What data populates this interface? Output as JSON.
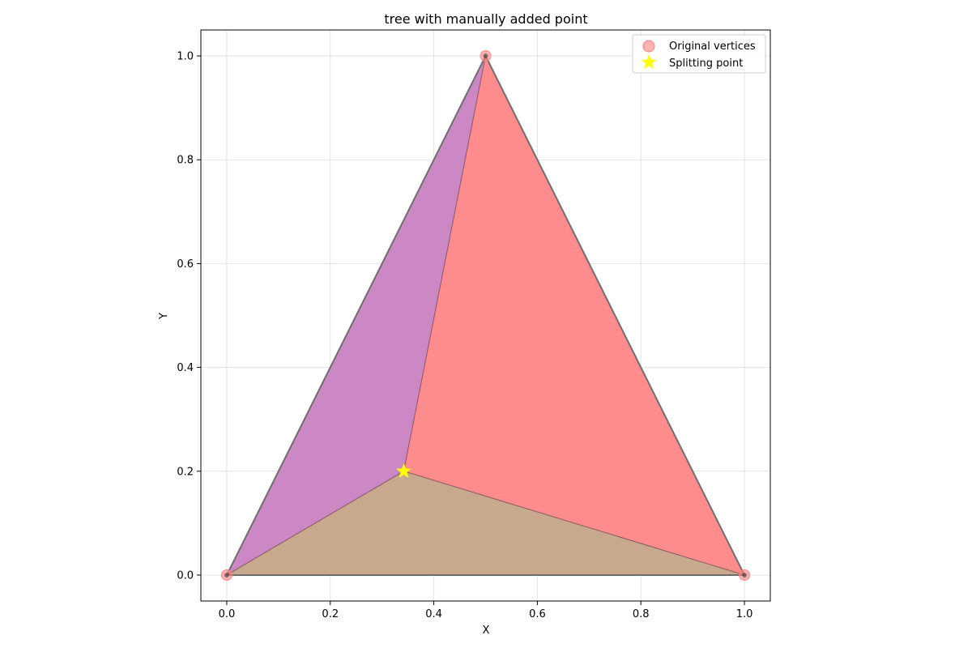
{
  "chart_data": {
    "type": "scatter",
    "title": "tree with manually added point",
    "xlabel": "X",
    "ylabel": "Y",
    "xlim": [
      -0.05,
      1.05
    ],
    "ylim": [
      -0.05,
      1.05
    ],
    "xticks": [
      0.0,
      0.2,
      0.4,
      0.6,
      0.8,
      1.0
    ],
    "yticks": [
      0.0,
      0.2,
      0.4,
      0.6,
      0.8,
      1.0
    ],
    "xtick_labels": [
      "0.0",
      "0.2",
      "0.4",
      "0.6",
      "0.8",
      "1.0"
    ],
    "ytick_labels": [
      "0.0",
      "0.2",
      "0.4",
      "0.6",
      "0.8",
      "1.0"
    ],
    "grid": true,
    "legend_position": "top-right",
    "triangles": [
      {
        "vertices": [
          [
            0.0,
            0.0
          ],
          [
            0.5,
            1.0
          ],
          [
            0.342,
            0.2
          ]
        ],
        "color": "#cc88c4"
      },
      {
        "vertices": [
          [
            0.5,
            1.0
          ],
          [
            1.0,
            0.0
          ],
          [
            0.342,
            0.2
          ]
        ],
        "color": "#ff8c8c"
      },
      {
        "vertices": [
          [
            0.0,
            0.0
          ],
          [
            1.0,
            0.0
          ],
          [
            0.342,
            0.2
          ]
        ],
        "color": "#c9a98e"
      }
    ],
    "outline": {
      "vertices": [
        [
          0.0,
          0.0
        ],
        [
          0.5,
          1.0
        ],
        [
          1.0,
          0.0
        ]
      ],
      "color": "#6e6e6e"
    },
    "series": [
      {
        "name": "Original vertices",
        "marker": "circle",
        "color": "#ff8080",
        "x": [
          0.0,
          0.5,
          1.0
        ],
        "y": [
          0.0,
          1.0,
          0.0
        ]
      },
      {
        "name": "Splitting point",
        "marker": "star",
        "color": "#ffff00",
        "x": [
          0.342
        ],
        "y": [
          0.2
        ]
      }
    ]
  }
}
